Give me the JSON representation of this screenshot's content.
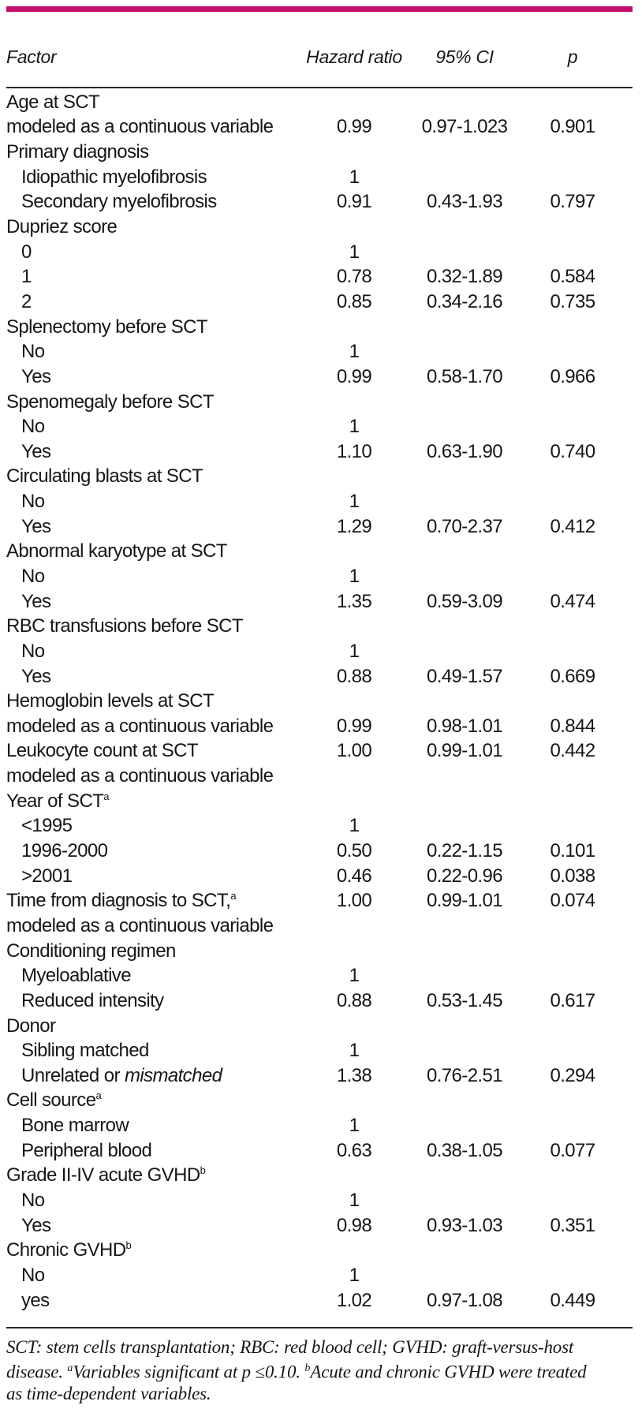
{
  "colors": {
    "accent_bar": "#c40e6c",
    "rule": "#262626",
    "text": "#161616"
  },
  "table": {
    "columns": {
      "factor": "Factor",
      "hazard_ratio": "Hazard ratio",
      "ci": "95% CI",
      "p": "p"
    },
    "rows": [
      {
        "label": "Age at SCT",
        "indent": 0,
        "hr": "",
        "ci": "",
        "p": ""
      },
      {
        "label": "modeled as a continuous variable",
        "indent": 0,
        "hr": "0.99",
        "ci": "0.97-1.023",
        "p": "0.901"
      },
      {
        "label": "Primary diagnosis",
        "indent": 0,
        "hr": "",
        "ci": "",
        "p": ""
      },
      {
        "label": "Idiopathic myelofibrosis",
        "indent": 1,
        "hr": "1",
        "ci": "",
        "p": ""
      },
      {
        "label": "Secondary myelofibrosis",
        "indent": 1,
        "hr": "0.91",
        "ci": "0.43-1.93",
        "p": "0.797"
      },
      {
        "label": "Dupriez score",
        "indent": 0,
        "hr": "",
        "ci": "",
        "p": ""
      },
      {
        "label": "0",
        "indent": 1,
        "hr": "1",
        "ci": "",
        "p": ""
      },
      {
        "label": "1",
        "indent": 1,
        "hr": "0.78",
        "ci": "0.32-1.89",
        "p": "0.584"
      },
      {
        "label": "2",
        "indent": 1,
        "hr": "0.85",
        "ci": "0.34-2.16",
        "p": "0.735"
      },
      {
        "label": "Splenectomy before SCT",
        "indent": 0,
        "hr": "",
        "ci": "",
        "p": ""
      },
      {
        "label": "No",
        "indent": 1,
        "hr": "1",
        "ci": "",
        "p": ""
      },
      {
        "label": "Yes",
        "indent": 1,
        "hr": "0.99",
        "ci": "0.58-1.70",
        "p": "0.966"
      },
      {
        "label": "Spenomegaly before SCT",
        "indent": 0,
        "hr": "",
        "ci": "",
        "p": ""
      },
      {
        "label": "No",
        "indent": 1,
        "hr": "1",
        "ci": "",
        "p": ""
      },
      {
        "label": "Yes",
        "indent": 1,
        "hr": "1.10",
        "ci": "0.63-1.90",
        "p": "0.740"
      },
      {
        "label": "Circulating blasts at SCT",
        "indent": 0,
        "hr": "",
        "ci": "",
        "p": ""
      },
      {
        "label": "No",
        "indent": 1,
        "hr": "1",
        "ci": "",
        "p": ""
      },
      {
        "label": "Yes",
        "indent": 1,
        "hr": "1.29",
        "ci": "0.70-2.37",
        "p": "0.412"
      },
      {
        "label": "Abnormal karyotype at SCT",
        "indent": 0,
        "hr": "",
        "ci": "",
        "p": ""
      },
      {
        "label": "No",
        "indent": 1,
        "hr": "1",
        "ci": "",
        "p": ""
      },
      {
        "label": "Yes",
        "indent": 1,
        "hr": "1.35",
        "ci": "0.59-3.09",
        "p": "0.474"
      },
      {
        "label": "RBC transfusions before SCT",
        "indent": 0,
        "hr": "",
        "ci": "",
        "p": ""
      },
      {
        "label": "No",
        "indent": 1,
        "hr": "1",
        "ci": "",
        "p": ""
      },
      {
        "label": "Yes",
        "indent": 1,
        "hr": "0.88",
        "ci": "0.49-1.57",
        "p": "0.669"
      },
      {
        "label": "Hemoglobin levels at SCT",
        "indent": 0,
        "hr": "",
        "ci": "",
        "p": ""
      },
      {
        "label": "modeled as a continuous variable",
        "indent": 0,
        "hr": "0.99",
        "ci": "0.98-1.01",
        "p": "0.844"
      },
      {
        "label": "Leukocyte count at SCT",
        "indent": 0,
        "hr": "1.00",
        "ci": "0.99-1.01",
        "p": "0.442"
      },
      {
        "label": "modeled as a continuous variable",
        "indent": 0,
        "hr": "",
        "ci": "",
        "p": ""
      },
      {
        "label": "Year of SCT",
        "sup": "a",
        "indent": 0,
        "hr": "",
        "ci": "",
        "p": ""
      },
      {
        "label": "<1995",
        "indent": 1,
        "hr": "1",
        "ci": "",
        "p": ""
      },
      {
        "label": "1996-2000",
        "indent": 1,
        "hr": "0.50",
        "ci": "0.22-1.15",
        "p": "0.101"
      },
      {
        "label": ">2001",
        "indent": 1,
        "hr": "0.46",
        "ci": "0.22-0.96",
        "p": "0.038"
      },
      {
        "label": "Time from diagnosis to SCT,",
        "sup": "a",
        "indent": 0,
        "hr": "1.00",
        "ci": "0.99-1.01",
        "p": "0.074"
      },
      {
        "label": "modeled as a continuous variable",
        "indent": 0,
        "hr": "",
        "ci": "",
        "p": ""
      },
      {
        "label": "Conditioning regimen",
        "indent": 0,
        "hr": "",
        "ci": "",
        "p": ""
      },
      {
        "label": "Myeloablative",
        "indent": 1,
        "hr": "1",
        "ci": "",
        "p": ""
      },
      {
        "label": "Reduced intensity",
        "indent": 1,
        "hr": "0.88",
        "ci": "0.53-1.45",
        "p": "0.617"
      },
      {
        "label": "Donor",
        "indent": 0,
        "hr": "",
        "ci": "",
        "p": ""
      },
      {
        "label": "Sibling matched",
        "indent": 1,
        "hr": "1",
        "ci": "",
        "p": ""
      },
      {
        "label": "Unrelated or ",
        "italic": "mismatched",
        "indent": 1,
        "hr": "1.38",
        "ci": "0.76-2.51",
        "p": "0.294"
      },
      {
        "label": "Cell source",
        "sup": "a",
        "indent": 0,
        "hr": "",
        "ci": "",
        "p": ""
      },
      {
        "label": "Bone marrow",
        "indent": 1,
        "hr": "1",
        "ci": "",
        "p": ""
      },
      {
        "label": "Peripheral blood",
        "indent": 1,
        "hr": "0.63",
        "ci": "0.38-1.05",
        "p": "0.077"
      },
      {
        "label": "Grade II-IV acute GVHD",
        "sup": "b",
        "indent": 0,
        "hr": "",
        "ci": "",
        "p": ""
      },
      {
        "label": "No",
        "indent": 1,
        "hr": "1",
        "ci": "",
        "p": ""
      },
      {
        "label": "Yes",
        "indent": 1,
        "hr": "0.98",
        "ci": "0.93-1.03",
        "p": "0.351"
      },
      {
        "label": "Chronic GVHD",
        "sup": "b",
        "indent": 0,
        "hr": "",
        "ci": "",
        "p": ""
      },
      {
        "label": "No",
        "indent": 1,
        "hr": "1",
        "ci": "",
        "p": ""
      },
      {
        "label": "yes",
        "indent": 1,
        "hr": "1.02",
        "ci": "0.97-1.08",
        "p": "0.449"
      }
    ]
  },
  "footnote": {
    "lines": [
      {
        "segments": [
          {
            "t": "SCT: stem cells transplantation; RBC: red blood cell; GVHD: graft-versus-host"
          }
        ]
      },
      {
        "segments": [
          {
            "t": "disease. "
          },
          {
            "sup": "a"
          },
          {
            "t": "Variables significant at p ≤0.10. "
          },
          {
            "sup": "b"
          },
          {
            "t": "Acute and chronic GVHD were treated"
          }
        ]
      },
      {
        "segments": [
          {
            "t": "as time-dependent variables."
          }
        ]
      }
    ]
  }
}
